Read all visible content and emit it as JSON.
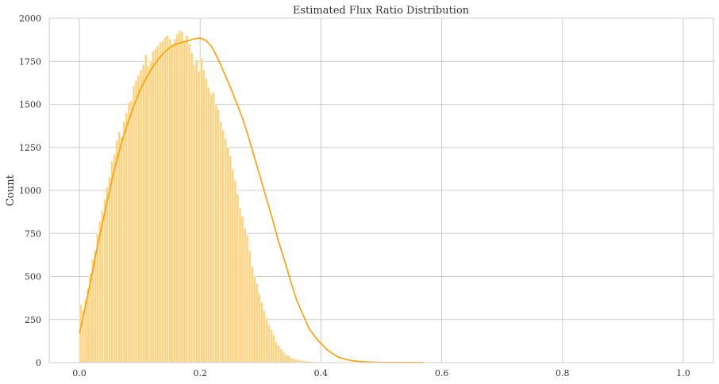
{
  "chart_data": {
    "type": "bar",
    "title": "Estimated Flux Ratio Distribution",
    "xlabel": "",
    "ylabel": "Count",
    "xlim": [
      -0.05,
      1.05
    ],
    "ylim": [
      0,
      2000
    ],
    "xticks": [
      0.0,
      0.2,
      0.4,
      0.6,
      0.8,
      1.0
    ],
    "xtick_labels": [
      "0.0",
      "0.2",
      "0.4",
      "0.6",
      "0.8",
      "1.0"
    ],
    "yticks": [
      0,
      250,
      500,
      750,
      1000,
      1250,
      1500,
      1750,
      2000
    ],
    "ytick_labels": [
      "0",
      "250",
      "500",
      "750",
      "1000",
      "1250",
      "1500",
      "1750",
      "2000"
    ],
    "grid": true,
    "bar_color": "#FFD27F",
    "bar_edge_color": "#ffffff",
    "kde_color": "#FF9F00",
    "bin_width": 0.004,
    "bin_starts": [
      0.0,
      0.004,
      0.008,
      0.012,
      0.016,
      0.02,
      0.024,
      0.028,
      0.032,
      0.036,
      0.04,
      0.044,
      0.048,
      0.052,
      0.056,
      0.06,
      0.064,
      0.068,
      0.072,
      0.076,
      0.08,
      0.084,
      0.088,
      0.092,
      0.096,
      0.1,
      0.104,
      0.108,
      0.112,
      0.116,
      0.12,
      0.124,
      0.128,
      0.132,
      0.136,
      0.14,
      0.144,
      0.148,
      0.152,
      0.156,
      0.16,
      0.164,
      0.168,
      0.172,
      0.176,
      0.18,
      0.184,
      0.188,
      0.192,
      0.196,
      0.2,
      0.204,
      0.208,
      0.212,
      0.216,
      0.22,
      0.224,
      0.228,
      0.232,
      0.236,
      0.24,
      0.244,
      0.248,
      0.252,
      0.256,
      0.26,
      0.264,
      0.268,
      0.272,
      0.276,
      0.28,
      0.284,
      0.288,
      0.292,
      0.296,
      0.3,
      0.304,
      0.308,
      0.312,
      0.316,
      0.32,
      0.324,
      0.328,
      0.332,
      0.336,
      0.34,
      0.344,
      0.348,
      0.352,
      0.356,
      0.36,
      0.364,
      0.368,
      0.372,
      0.376,
      0.38,
      0.384,
      0.388,
      0.392,
      0.396,
      0.4,
      0.404,
      0.408,
      0.412,
      0.416,
      0.42,
      0.424,
      0.428,
      0.432,
      0.436,
      0.44,
      0.444,
      0.448,
      0.452,
      0.456,
      0.46,
      0.464,
      0.468,
      0.472,
      0.476,
      0.48,
      0.484,
      0.488,
      0.492,
      0.496,
      0.5,
      0.504,
      0.508,
      0.512,
      0.516,
      0.52,
      0.524,
      0.528,
      0.532,
      0.536,
      0.54,
      0.544,
      0.548,
      0.552,
      0.556,
      0.56,
      0.564
    ],
    "counts": [
      340,
      300,
      360,
      430,
      520,
      600,
      650,
      750,
      820,
      880,
      950,
      1020,
      1080,
      1170,
      1210,
      1290,
      1340,
      1310,
      1400,
      1450,
      1510,
      1520,
      1610,
      1640,
      1670,
      1700,
      1730,
      1790,
      1720,
      1750,
      1810,
      1820,
      1840,
      1860,
      1870,
      1890,
      1900,
      1880,
      1850,
      1880,
      1910,
      1930,
      1920,
      1870,
      1900,
      1850,
      1800,
      1730,
      1760,
      1690,
      1770,
      1700,
      1650,
      1600,
      1560,
      1570,
      1500,
      1470,
      1400,
      1350,
      1300,
      1250,
      1200,
      1120,
      1060,
      980,
      900,
      850,
      780,
      740,
      650,
      560,
      500,
      460,
      400,
      350,
      300,
      260,
      220,
      190,
      160,
      120,
      100,
      80,
      60,
      45,
      40,
      30,
      25,
      20,
      17,
      14,
      11,
      9,
      8,
      7,
      6,
      5,
      4,
      4,
      3,
      3,
      2,
      2,
      2,
      2,
      1,
      1,
      1,
      1,
      1,
      1,
      1,
      1,
      1,
      1,
      1,
      1,
      1,
      1,
      1,
      1,
      1,
      1,
      1,
      1,
      1,
      1,
      1,
      1,
      1,
      1,
      1,
      1,
      1,
      1,
      1,
      1,
      1,
      1
    ],
    "kde_x": [
      0.0,
      0.01,
      0.02,
      0.03,
      0.04,
      0.05,
      0.06,
      0.07,
      0.08,
      0.09,
      0.1,
      0.11,
      0.12,
      0.13,
      0.14,
      0.15,
      0.16,
      0.17,
      0.18,
      0.19,
      0.2,
      0.21,
      0.22,
      0.23,
      0.24,
      0.25,
      0.26,
      0.27,
      0.28,
      0.29,
      0.3,
      0.31,
      0.32,
      0.33,
      0.34,
      0.35,
      0.36,
      0.37,
      0.38,
      0.39,
      0.4,
      0.41,
      0.42,
      0.43,
      0.44,
      0.45,
      0.46,
      0.47,
      0.48,
      0.49,
      0.5,
      0.52,
      0.54,
      0.56,
      0.57
    ],
    "kde_y": [
      170,
      330,
      500,
      680,
      840,
      1000,
      1150,
      1280,
      1390,
      1490,
      1580,
      1650,
      1710,
      1760,
      1800,
      1830,
      1850,
      1860,
      1870,
      1880,
      1885,
      1870,
      1830,
      1760,
      1680,
      1600,
      1510,
      1420,
      1310,
      1190,
      1070,
      950,
      830,
      700,
      590,
      470,
      360,
      280,
      200,
      150,
      110,
      75,
      50,
      30,
      20,
      12,
      8,
      5,
      3,
      2,
      1,
      1,
      1,
      1,
      1
    ]
  }
}
